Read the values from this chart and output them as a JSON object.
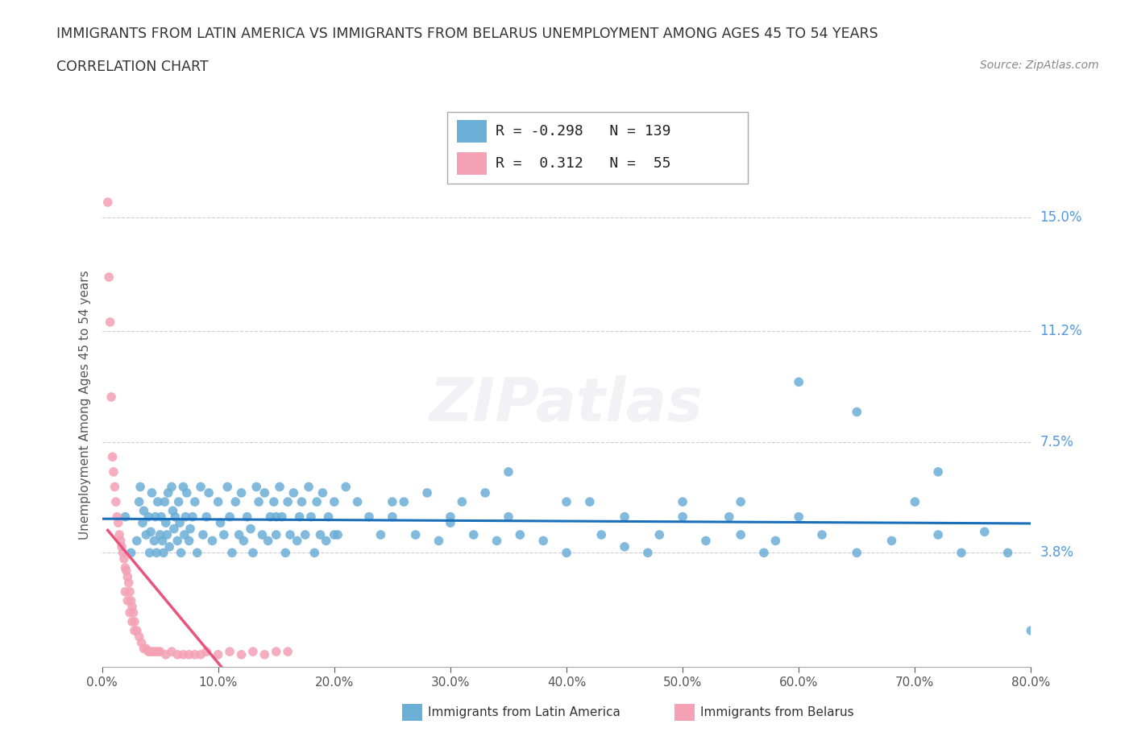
{
  "title_line1": "IMMIGRANTS FROM LATIN AMERICA VS IMMIGRANTS FROM BELARUS UNEMPLOYMENT AMONG AGES 45 TO 54 YEARS",
  "title_line2": "CORRELATION CHART",
  "source_text": "Source: ZipAtlas.com",
  "ylabel": "Unemployment Among Ages 45 to 54 years",
  "xlim": [
    0.0,
    0.8
  ],
  "ylim": [
    0.0,
    0.175
  ],
  "right_yticks": [
    0.038,
    0.075,
    0.112,
    0.15
  ],
  "right_yticklabels": [
    "3.8%",
    "7.5%",
    "11.2%",
    "15.0%"
  ],
  "xtick_labels": [
    "0.0%",
    "10.0%",
    "20.0%",
    "30.0%",
    "40.0%",
    "50.0%",
    "60.0%",
    "70.0%",
    "80.0%"
  ],
  "xtick_values": [
    0.0,
    0.1,
    0.2,
    0.3,
    0.4,
    0.5,
    0.6,
    0.7,
    0.8
  ],
  "legend_blue_r": "-0.298",
  "legend_blue_n": "139",
  "legend_pink_r": "0.312",
  "legend_pink_n": "55",
  "blue_color": "#6baed6",
  "pink_color": "#f4a0b5",
  "trendline_blue_color": "#1a6fba",
  "trendline_pink_color": "#e8547a",
  "watermark": "ZIPatlas",
  "blue_scatter_x": [
    0.02,
    0.025,
    0.03,
    0.032,
    0.033,
    0.035,
    0.036,
    0.038,
    0.04,
    0.041,
    0.042,
    0.043,
    0.045,
    0.046,
    0.047,
    0.048,
    0.05,
    0.051,
    0.052,
    0.053,
    0.054,
    0.055,
    0.056,
    0.057,
    0.058,
    0.06,
    0.061,
    0.062,
    0.063,
    0.065,
    0.066,
    0.067,
    0.068,
    0.07,
    0.071,
    0.072,
    0.073,
    0.075,
    0.076,
    0.078,
    0.08,
    0.082,
    0.085,
    0.087,
    0.09,
    0.092,
    0.095,
    0.1,
    0.102,
    0.105,
    0.108,
    0.11,
    0.112,
    0.115,
    0.118,
    0.12,
    0.122,
    0.125,
    0.128,
    0.13,
    0.133,
    0.135,
    0.138,
    0.14,
    0.143,
    0.145,
    0.148,
    0.15,
    0.153,
    0.155,
    0.158,
    0.16,
    0.162,
    0.165,
    0.168,
    0.17,
    0.172,
    0.175,
    0.178,
    0.18,
    0.183,
    0.185,
    0.188,
    0.19,
    0.193,
    0.195,
    0.2,
    0.203,
    0.21,
    0.22,
    0.23,
    0.24,
    0.25,
    0.26,
    0.27,
    0.28,
    0.29,
    0.3,
    0.31,
    0.32,
    0.33,
    0.34,
    0.35,
    0.36,
    0.38,
    0.4,
    0.42,
    0.43,
    0.45,
    0.47,
    0.48,
    0.5,
    0.52,
    0.54,
    0.55,
    0.57,
    0.58,
    0.6,
    0.62,
    0.65,
    0.68,
    0.7,
    0.72,
    0.74,
    0.76,
    0.78,
    0.8,
    0.72,
    0.65,
    0.6,
    0.55,
    0.5,
    0.45,
    0.4,
    0.35,
    0.3,
    0.25,
    0.2,
    0.15
  ],
  "blue_scatter_y": [
    0.05,
    0.038,
    0.042,
    0.055,
    0.06,
    0.048,
    0.052,
    0.044,
    0.05,
    0.038,
    0.045,
    0.058,
    0.042,
    0.05,
    0.038,
    0.055,
    0.044,
    0.05,
    0.042,
    0.038,
    0.055,
    0.048,
    0.044,
    0.058,
    0.04,
    0.06,
    0.052,
    0.046,
    0.05,
    0.042,
    0.055,
    0.048,
    0.038,
    0.06,
    0.044,
    0.05,
    0.058,
    0.042,
    0.046,
    0.05,
    0.055,
    0.038,
    0.06,
    0.044,
    0.05,
    0.058,
    0.042,
    0.055,
    0.048,
    0.044,
    0.06,
    0.05,
    0.038,
    0.055,
    0.044,
    0.058,
    0.042,
    0.05,
    0.046,
    0.038,
    0.06,
    0.055,
    0.044,
    0.058,
    0.042,
    0.05,
    0.055,
    0.044,
    0.06,
    0.05,
    0.038,
    0.055,
    0.044,
    0.058,
    0.042,
    0.05,
    0.055,
    0.044,
    0.06,
    0.05,
    0.038,
    0.055,
    0.044,
    0.058,
    0.042,
    0.05,
    0.055,
    0.044,
    0.06,
    0.055,
    0.05,
    0.044,
    0.05,
    0.055,
    0.044,
    0.058,
    0.042,
    0.05,
    0.055,
    0.044,
    0.058,
    0.042,
    0.05,
    0.044,
    0.042,
    0.038,
    0.055,
    0.044,
    0.05,
    0.038,
    0.044,
    0.055,
    0.042,
    0.05,
    0.044,
    0.038,
    0.042,
    0.05,
    0.044,
    0.038,
    0.042,
    0.055,
    0.044,
    0.038,
    0.045,
    0.038,
    0.012,
    0.065,
    0.085,
    0.095,
    0.055,
    0.05,
    0.04,
    0.055,
    0.065,
    0.048,
    0.055,
    0.044,
    0.05
  ],
  "pink_scatter_x": [
    0.005,
    0.006,
    0.007,
    0.008,
    0.009,
    0.01,
    0.011,
    0.012,
    0.013,
    0.014,
    0.015,
    0.016,
    0.017,
    0.018,
    0.019,
    0.02,
    0.021,
    0.022,
    0.023,
    0.024,
    0.025,
    0.026,
    0.027,
    0.028,
    0.03,
    0.032,
    0.034,
    0.036,
    0.038,
    0.04,
    0.042,
    0.044,
    0.046,
    0.048,
    0.05,
    0.055,
    0.06,
    0.065,
    0.07,
    0.075,
    0.08,
    0.085,
    0.09,
    0.1,
    0.11,
    0.12,
    0.13,
    0.14,
    0.15,
    0.16,
    0.02,
    0.022,
    0.024,
    0.026,
    0.028
  ],
  "pink_scatter_y": [
    0.155,
    0.13,
    0.115,
    0.09,
    0.07,
    0.065,
    0.06,
    0.055,
    0.05,
    0.048,
    0.044,
    0.042,
    0.04,
    0.038,
    0.036,
    0.033,
    0.032,
    0.03,
    0.028,
    0.025,
    0.022,
    0.02,
    0.018,
    0.015,
    0.012,
    0.01,
    0.008,
    0.006,
    0.006,
    0.005,
    0.005,
    0.005,
    0.005,
    0.005,
    0.005,
    0.004,
    0.005,
    0.004,
    0.004,
    0.004,
    0.004,
    0.004,
    0.005,
    0.004,
    0.005,
    0.004,
    0.005,
    0.004,
    0.005,
    0.005,
    0.025,
    0.022,
    0.018,
    0.015,
    0.012
  ]
}
